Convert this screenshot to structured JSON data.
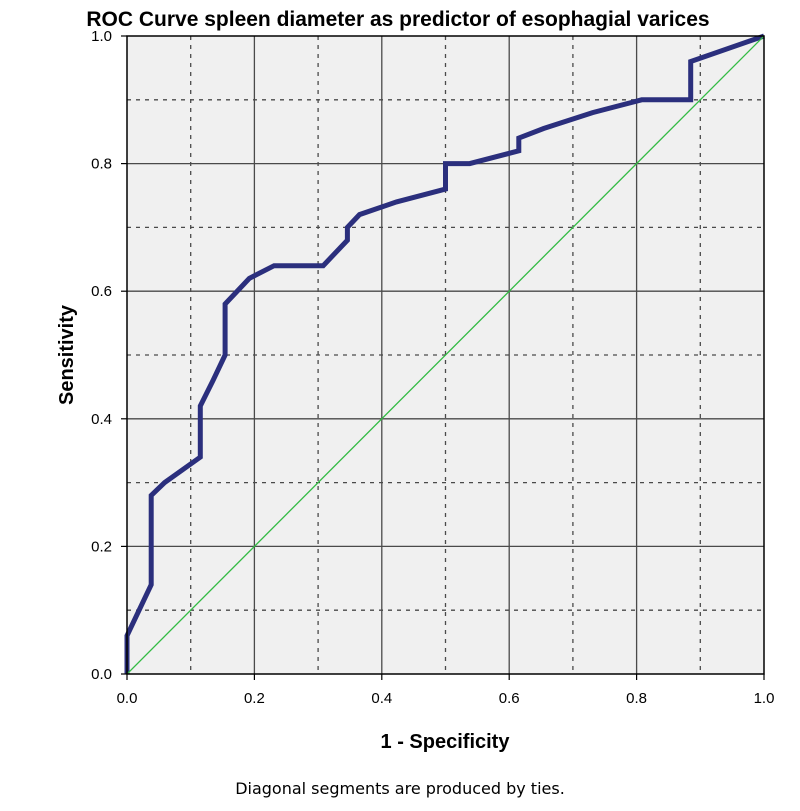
{
  "chart_data": {
    "type": "line",
    "title": "ROC Curve spleen diameter as predictor of esophagial varices",
    "xlabel": "1 - Specificity",
    "ylabel": "Sensitivity",
    "footnote": "Diagonal segments are produced by ties.",
    "xlim": [
      0,
      1
    ],
    "ylim": [
      0,
      1
    ],
    "x_ticks": [
      "0.0",
      "0.2",
      "0.4",
      "0.6",
      "0.8",
      "1.0"
    ],
    "y_ticks": [
      "0.0",
      "0.2",
      "0.4",
      "0.6",
      "0.8",
      "1.0"
    ],
    "major_grid": [
      0.2,
      0.4,
      0.6,
      0.8
    ],
    "minor_grid": [
      0.1,
      0.3,
      0.5,
      0.7,
      0.9
    ],
    "grid": true,
    "legend": "none",
    "colors": {
      "roc": "#2b2f7d",
      "reference": "#33bb44",
      "plot_background": "#f0f0f0",
      "major_grid": "#4a4a4a",
      "minor_grid": "#4a4a4a"
    },
    "series": [
      {
        "key": "roc",
        "values": [
          [
            0.0,
            0.0
          ],
          [
            0.0,
            0.06
          ],
          [
            0.038,
            0.14
          ],
          [
            0.038,
            0.28
          ],
          [
            0.059,
            0.3
          ],
          [
            0.115,
            0.34
          ],
          [
            0.115,
            0.42
          ],
          [
            0.135,
            0.46
          ],
          [
            0.154,
            0.5
          ],
          [
            0.154,
            0.58
          ],
          [
            0.192,
            0.62
          ],
          [
            0.231,
            0.64
          ],
          [
            0.308,
            0.64
          ],
          [
            0.346,
            0.68
          ],
          [
            0.346,
            0.7
          ],
          [
            0.365,
            0.72
          ],
          [
            0.423,
            0.74
          ],
          [
            0.5,
            0.76
          ],
          [
            0.5,
            0.8
          ],
          [
            0.538,
            0.8
          ],
          [
            0.615,
            0.82
          ],
          [
            0.615,
            0.84
          ],
          [
            0.654,
            0.855
          ],
          [
            0.731,
            0.88
          ],
          [
            0.808,
            0.9
          ],
          [
            0.885,
            0.9
          ],
          [
            0.885,
            0.96
          ],
          [
            1.0,
            1.0
          ]
        ]
      },
      {
        "key": "reference",
        "values": [
          [
            0.0,
            0.0
          ],
          [
            1.0,
            1.0
          ]
        ]
      }
    ]
  }
}
